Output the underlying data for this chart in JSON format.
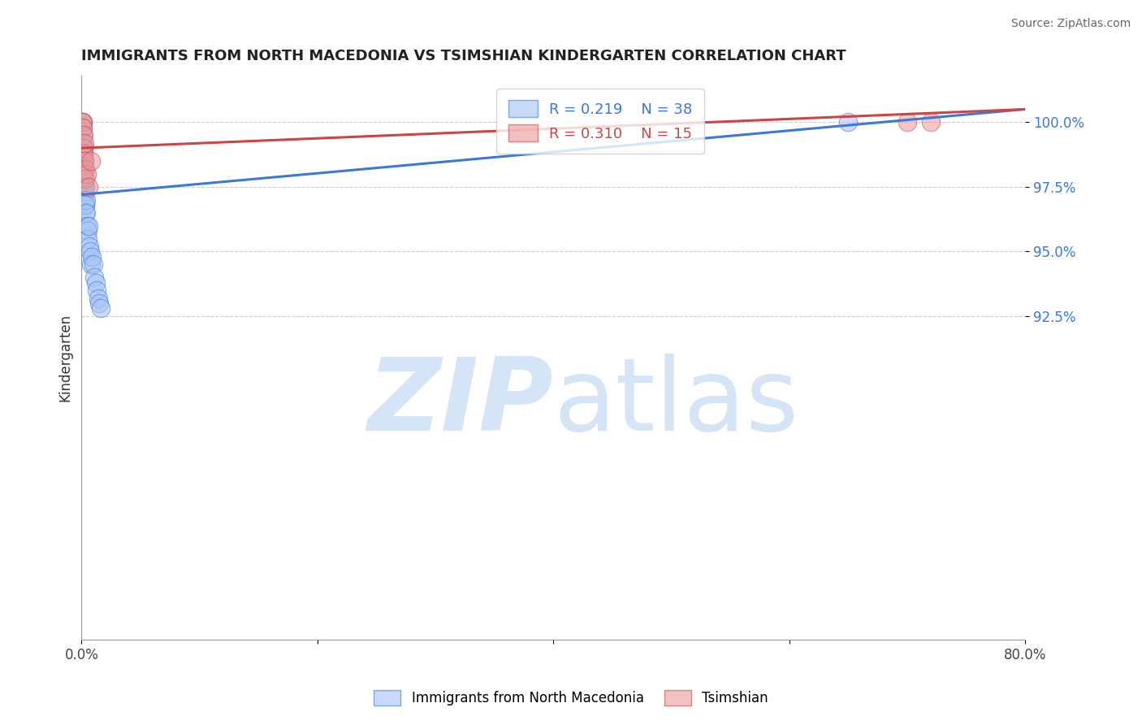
{
  "title": "IMMIGRANTS FROM NORTH MACEDONIA VS TSIMSHIAN KINDERGARTEN CORRELATION CHART",
  "ylabel": "Kindergarten",
  "source_text": "Source: ZipAtlas.com",
  "x_min": 0.0,
  "x_max": 80.0,
  "y_min": 80.0,
  "y_max": 101.8,
  "y_ticks": [
    92.5,
    95.0,
    97.5,
    100.0
  ],
  "y_tick_labels": [
    "92.5%",
    "95.0%",
    "97.5%",
    "100.0%"
  ],
  "blue_R": 0.219,
  "blue_N": 38,
  "pink_R": 0.31,
  "pink_N": 15,
  "blue_label": "Immigrants from North Macedonia",
  "pink_label": "Tsimshian",
  "blue_color": "#a4c2f4",
  "pink_color": "#ea9999",
  "blue_line_color": "#3c78d8",
  "pink_line_color": "#cc4444",
  "watermark_color": "#d6e4f7",
  "blue_scatter_x": [
    0.05,
    0.08,
    0.1,
    0.1,
    0.12,
    0.12,
    0.15,
    0.15,
    0.18,
    0.18,
    0.2,
    0.2,
    0.22,
    0.22,
    0.25,
    0.28,
    0.3,
    0.3,
    0.32,
    0.35,
    0.38,
    0.4,
    0.45,
    0.5,
    0.55,
    0.6,
    0.65,
    0.7,
    0.8,
    0.9,
    1.0,
    1.1,
    1.2,
    1.3,
    1.4,
    1.5,
    1.6,
    65.0
  ],
  "blue_scatter_y": [
    100.0,
    100.0,
    99.8,
    99.5,
    99.2,
    99.0,
    98.8,
    98.5,
    98.0,
    99.0,
    98.2,
    97.8,
    97.5,
    98.5,
    97.2,
    97.0,
    96.8,
    97.5,
    96.5,
    96.8,
    97.0,
    96.5,
    96.0,
    95.8,
    95.5,
    96.0,
    95.2,
    95.0,
    94.5,
    94.8,
    94.5,
    94.0,
    93.8,
    93.5,
    93.2,
    93.0,
    92.8,
    100.0
  ],
  "pink_scatter_x": [
    0.05,
    0.08,
    0.1,
    0.15,
    0.18,
    0.2,
    0.22,
    0.25,
    0.3,
    0.35,
    0.45,
    0.6,
    0.8,
    70.0,
    72.0
  ],
  "pink_scatter_y": [
    100.0,
    100.0,
    99.8,
    99.5,
    99.0,
    98.8,
    99.2,
    98.5,
    98.2,
    97.8,
    98.0,
    97.5,
    98.5,
    100.0,
    100.0
  ],
  "blue_line_x0": 0.0,
  "blue_line_y0": 97.2,
  "blue_line_x1": 80.0,
  "blue_line_y1": 100.5,
  "pink_line_x0": 0.0,
  "pink_line_y0": 99.0,
  "pink_line_x1": 80.0,
  "pink_line_y1": 100.5
}
